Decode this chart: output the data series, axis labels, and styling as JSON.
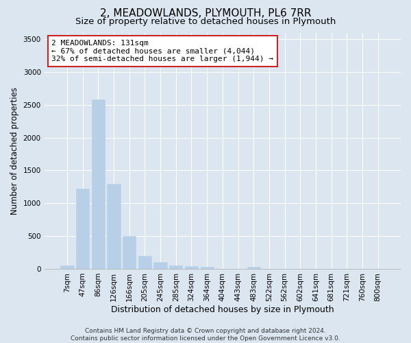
{
  "title": "2, MEADOWLANDS, PLYMOUTH, PL6 7RR",
  "subtitle": "Size of property relative to detached houses in Plymouth",
  "xlabel": "Distribution of detached houses by size in Plymouth",
  "ylabel": "Number of detached properties",
  "categories": [
    "7sqm",
    "47sqm",
    "86sqm",
    "126sqm",
    "166sqm",
    "205sqm",
    "245sqm",
    "285sqm",
    "324sqm",
    "364sqm",
    "404sqm",
    "443sqm",
    "483sqm",
    "522sqm",
    "562sqm",
    "602sqm",
    "641sqm",
    "681sqm",
    "721sqm",
    "760sqm",
    "800sqm"
  ],
  "values": [
    50,
    1220,
    2580,
    1300,
    500,
    195,
    105,
    50,
    45,
    30,
    0,
    0,
    30,
    0,
    0,
    0,
    0,
    0,
    0,
    0,
    0
  ],
  "bar_color": "#b8cfe8",
  "bar_edge_color": "#b8cfe8",
  "annotation_line1": "2 MEADOWLANDS: 131sqm",
  "annotation_line2": "← 67% of detached houses are smaller (4,044)",
  "annotation_line3": "32% of semi-detached houses are larger (1,944) →",
  "annotation_box_color": "#ffffff",
  "annotation_box_edge_color": "#cc2222",
  "ylim": [
    0,
    3600
  ],
  "yticks": [
    0,
    500,
    1000,
    1500,
    2000,
    2500,
    3000,
    3500
  ],
  "background_color": "#dce6f0",
  "grid_color": "#ffffff",
  "footer_line1": "Contains HM Land Registry data © Crown copyright and database right 2024.",
  "footer_line2": "Contains public sector information licensed under the Open Government Licence v3.0.",
  "title_fontsize": 11,
  "subtitle_fontsize": 9.5,
  "xlabel_fontsize": 9,
  "ylabel_fontsize": 8.5,
  "tick_fontsize": 7.5,
  "annotation_fontsize": 8,
  "footer_fontsize": 6.5
}
